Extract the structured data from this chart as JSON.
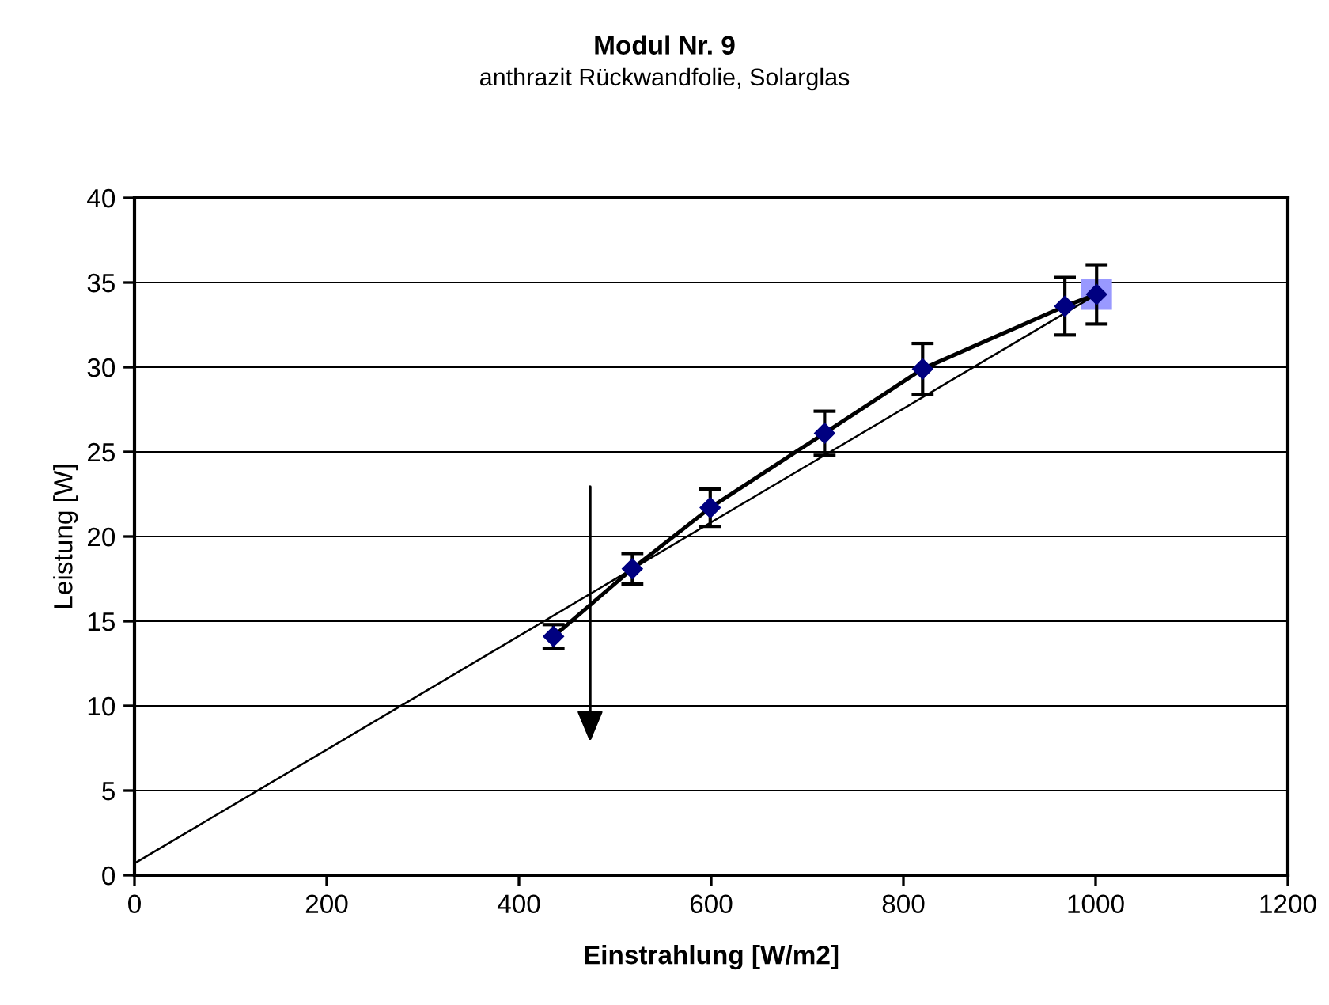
{
  "chart_data": {
    "type": "scatter",
    "title": "Modul Nr. 9",
    "subtitle": "anthrazit Rückwandfolie, Solarglas",
    "xlabel": "Einstrahlung [W/m2]",
    "ylabel": "Leistung [W]",
    "x": [
      436,
      518,
      599,
      718,
      820,
      968,
      1001
    ],
    "series": [
      {
        "type": "scatter",
        "color": "#9999ff",
        "marker": "square",
        "values": [
          null,
          null,
          null,
          null,
          null,
          null,
          34.3
        ]
      },
      {
        "type": "line",
        "color": "#000000",
        "marker": "none",
        "x": [
          0,
          1001
        ],
        "values": [
          0.7,
          34.3
        ]
      },
      {
        "type": "line",
        "color": "#000000",
        "marker": "none",
        "values": [
          14.1,
          18.1,
          21.7,
          26.1,
          29.9,
          33.6,
          34.3
        ]
      },
      {
        "type": "scatter",
        "color": "#000080",
        "marker": "diamond",
        "values": [
          14.1,
          18.1,
          21.7,
          26.1,
          29.9,
          33.6,
          34.3
        ],
        "errors": [
          0.7,
          0.9,
          1.1,
          1.3,
          1.5,
          1.7,
          1.75
        ]
      }
    ],
    "xlim": [
      0,
      1200
    ],
    "xticks": [
      0,
      200,
      400,
      600,
      800,
      1000,
      1200
    ],
    "ylim": [
      0,
      40
    ],
    "yticks": [
      0,
      5,
      10,
      15,
      20,
      25,
      30,
      35,
      40
    ],
    "grid": "y",
    "legend": false
  }
}
